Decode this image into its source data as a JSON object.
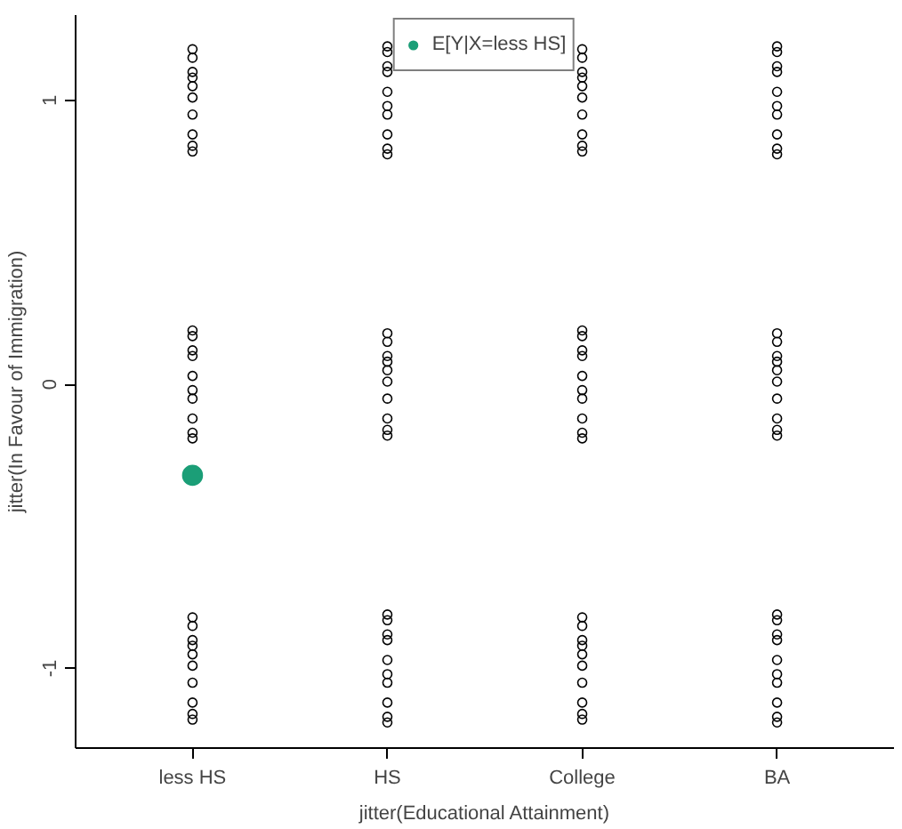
{
  "chart_data": {
    "type": "scatter",
    "xlabel": "jitter(Educational Attainment)",
    "ylabel": "jitter(In Favour of Immigration)",
    "categories": [
      "less HS",
      "HS",
      "College",
      "BA"
    ],
    "ylim": [
      -1.28,
      1.3
    ],
    "yticks": [
      -1,
      0,
      1
    ],
    "grid": false,
    "legend": "top",
    "series": [
      {
        "color": "#000000",
        "marker": "circle_open",
        "x": [
          "less HS",
          "less HS",
          "less HS",
          "less HS",
          "less HS",
          "less HS",
          "less HS",
          "less HS",
          "less HS",
          "less HS",
          "less HS",
          "less HS",
          "less HS",
          "less HS",
          "less HS",
          "less HS",
          "less HS",
          "less HS",
          "less HS",
          "less HS",
          "less HS",
          "less HS",
          "less HS",
          "less HS",
          "less HS",
          "less HS",
          "less HS",
          "less HS",
          "less HS",
          "less HS",
          "HS",
          "HS",
          "HS",
          "HS",
          "HS",
          "HS",
          "HS",
          "HS",
          "HS",
          "HS",
          "HS",
          "HS",
          "HS",
          "HS",
          "HS",
          "HS",
          "HS",
          "HS",
          "HS",
          "HS",
          "HS",
          "HS",
          "HS",
          "HS",
          "HS",
          "HS",
          "HS",
          "HS",
          "HS",
          "HS",
          "College",
          "College",
          "College",
          "College",
          "College",
          "College",
          "College",
          "College",
          "College",
          "College",
          "College",
          "College",
          "College",
          "College",
          "College",
          "College",
          "College",
          "College",
          "College",
          "College",
          "College",
          "College",
          "College",
          "College",
          "College",
          "College",
          "College",
          "College",
          "College",
          "College",
          "BA",
          "BA",
          "BA",
          "BA",
          "BA",
          "BA",
          "BA",
          "BA",
          "BA",
          "BA",
          "BA",
          "BA",
          "BA",
          "BA",
          "BA",
          "BA",
          "BA",
          "BA",
          "BA",
          "BA",
          "BA",
          "BA",
          "BA",
          "BA",
          "BA",
          "BA",
          "BA",
          "BA",
          "BA",
          "BA"
        ],
        "values": [
          1.15,
          0.88,
          1.05,
          1.18,
          0.95,
          1.1,
          0.82,
          0.84,
          1.08,
          1.01,
          -0.05,
          0.12,
          -0.19,
          0.1,
          -0.12,
          0.17,
          0.19,
          -0.02,
          -0.17,
          0.03,
          -0.85,
          -1.12,
          -0.95,
          -0.82,
          -1.05,
          -0.9,
          -1.18,
          -1.16,
          -0.92,
          -0.99,
          0.95,
          1.12,
          0.81,
          1.1,
          0.88,
          1.17,
          1.19,
          0.98,
          0.83,
          1.03,
          0.15,
          -0.12,
          0.05,
          0.18,
          -0.05,
          0.1,
          -0.18,
          -0.16,
          0.08,
          0.01,
          -1.05,
          -0.88,
          -1.19,
          -0.9,
          -1.12,
          -0.83,
          -0.81,
          -1.02,
          -1.17,
          -0.97,
          1.15,
          0.88,
          1.05,
          1.18,
          0.95,
          1.1,
          0.82,
          0.84,
          1.08,
          1.01,
          -0.05,
          0.12,
          -0.19,
          0.1,
          -0.12,
          0.17,
          0.19,
          -0.02,
          -0.17,
          0.03,
          -0.85,
          -1.12,
          -0.95,
          -0.82,
          -1.05,
          -0.9,
          -1.18,
          -1.16,
          -0.92,
          -0.99,
          0.95,
          1.12,
          0.81,
          1.1,
          0.88,
          1.17,
          1.19,
          0.98,
          0.83,
          1.03,
          0.15,
          -0.12,
          0.05,
          0.18,
          -0.05,
          0.1,
          -0.18,
          -0.16,
          0.08,
          0.01,
          -1.05,
          -0.88,
          -1.19,
          -0.9,
          -1.12,
          -0.83,
          -0.81,
          -1.02,
          -1.17,
          -0.97
        ]
      },
      {
        "name": "E[Y|X=less HS]",
        "color": "#1b9e77",
        "marker": "circle",
        "x": [
          "less HS"
        ],
        "values": [
          -0.32
        ]
      }
    ]
  }
}
